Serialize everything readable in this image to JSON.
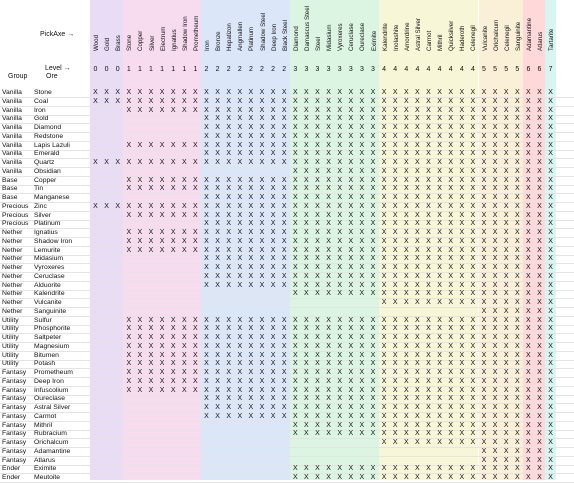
{
  "header": {
    "pickaxe_label": "PickAxe →",
    "level_label": "Level →",
    "group_label": "Group",
    "ore_label": "Ore"
  },
  "mark": "X",
  "band_colors": [
    "#e9dcf5",
    "#f7dcef",
    "#dbe6f9",
    "#dcf5e2",
    "#f7f7d8",
    "#f9f0d7",
    "#ffd9d9",
    "#d9f5f2"
  ],
  "columns": [
    {
      "name": "Wood",
      "level": "0",
      "band": 0
    },
    {
      "name": "Gold",
      "level": "0",
      "band": 0
    },
    {
      "name": "Brass",
      "level": "0",
      "band": 0
    },
    {
      "name": "Stone",
      "level": "1",
      "band": 1
    },
    {
      "name": "Copper",
      "level": "1",
      "band": 1
    },
    {
      "name": "Silver",
      "level": "1",
      "band": 1
    },
    {
      "name": "Electrum",
      "level": "1",
      "band": 1
    },
    {
      "name": "Ignatius",
      "level": "1",
      "band": 1
    },
    {
      "name": "Shadow Iron",
      "level": "1",
      "band": 1
    },
    {
      "name": "Prometheum",
      "level": "1",
      "band": 1
    },
    {
      "name": "Iron",
      "level": "2",
      "band": 2
    },
    {
      "name": "Bronze",
      "level": "2",
      "band": 2
    },
    {
      "name": "Hepatizon",
      "level": "2",
      "band": 2
    },
    {
      "name": "Angmallen",
      "level": "2",
      "band": 2
    },
    {
      "name": "Platinum",
      "level": "2",
      "band": 2
    },
    {
      "name": "Shadow Steel",
      "level": "2",
      "band": 2
    },
    {
      "name": "Deep Iron",
      "level": "2",
      "band": 2
    },
    {
      "name": "Black Steel",
      "level": "2",
      "band": 2
    },
    {
      "name": "Diamond",
      "level": "3",
      "band": 3
    },
    {
      "name": "Damascus Steel",
      "level": "3",
      "band": 3
    },
    {
      "name": "Steel",
      "level": "3",
      "band": 3
    },
    {
      "name": "Midasium",
      "level": "3",
      "band": 3
    },
    {
      "name": "Vyroxeres",
      "level": "3",
      "band": 3
    },
    {
      "name": "Ceruclase",
      "level": "3",
      "band": 3
    },
    {
      "name": "Oureclase",
      "level": "3",
      "band": 3
    },
    {
      "name": "Eximite",
      "level": "3",
      "band": 3
    },
    {
      "name": "Kalendrite",
      "level": "4",
      "band": 4
    },
    {
      "name": "Inolashite",
      "level": "4",
      "band": 4
    },
    {
      "name": "Amordrine",
      "level": "4",
      "band": 4
    },
    {
      "name": "Astral Silver",
      "level": "4",
      "band": 4
    },
    {
      "name": "Carmot",
      "level": "4",
      "band": 4
    },
    {
      "name": "Mithril",
      "level": "4",
      "band": 4
    },
    {
      "name": "Quicksilver",
      "level": "4",
      "band": 4
    },
    {
      "name": "Haderoth",
      "level": "4",
      "band": 4
    },
    {
      "name": "Celenegil",
      "level": "4",
      "band": 4
    },
    {
      "name": "Vulcanite",
      "level": "5",
      "band": 5
    },
    {
      "name": "Orichalcum",
      "level": "5",
      "band": 5
    },
    {
      "name": "Celenegil",
      "level": "5",
      "band": 5
    },
    {
      "name": "Sanguinite",
      "level": "5",
      "band": 5
    },
    {
      "name": "Adamantine",
      "level": "6",
      "band": 6
    },
    {
      "name": "Atlarus",
      "level": "6",
      "band": 6
    },
    {
      "name": "Tartarite",
      "level": "7",
      "band": 7
    }
  ],
  "rows": [
    {
      "group": "Vanilla",
      "ore": "Stone",
      "from": 0
    },
    {
      "group": "Vanilla",
      "ore": "Coal",
      "from": 0
    },
    {
      "group": "Vanilla",
      "ore": "Iron",
      "from": 3
    },
    {
      "group": "Vanilla",
      "ore": "Gold",
      "from": 10
    },
    {
      "group": "Vanilla",
      "ore": "Diamond",
      "from": 10
    },
    {
      "group": "Vanilla",
      "ore": "Redstone",
      "from": 10
    },
    {
      "group": "Vanilla",
      "ore": "Lapis Lazuli",
      "from": 3
    },
    {
      "group": "Vanilla",
      "ore": "Emerald",
      "from": 10
    },
    {
      "group": "Vanilla",
      "ore": "Quartz",
      "from": 0
    },
    {
      "group": "Vanilla",
      "ore": "Obsidian",
      "from": 18
    },
    {
      "group": "Base",
      "ore": "Copper",
      "from": 3
    },
    {
      "group": "Base",
      "ore": "Tin",
      "from": 3
    },
    {
      "group": "Base",
      "ore": "Manganese",
      "from": 10
    },
    {
      "group": "Precious",
      "ore": "Zinc",
      "from": 0
    },
    {
      "group": "Precious",
      "ore": "Silver",
      "from": 3
    },
    {
      "group": "Precious",
      "ore": "Platinum",
      "from": 10
    },
    {
      "group": "Nether",
      "ore": "Ignatius",
      "from": 3
    },
    {
      "group": "Nether",
      "ore": "Shadow Iron",
      "from": 3
    },
    {
      "group": "Nether",
      "ore": "Lemurite",
      "from": 3
    },
    {
      "group": "Nether",
      "ore": "Midasium",
      "from": 10
    },
    {
      "group": "Nether",
      "ore": "Vyroxeres",
      "from": 10
    },
    {
      "group": "Nether",
      "ore": "Ceruclase",
      "from": 10
    },
    {
      "group": "Nether",
      "ore": "Alduorite",
      "from": 10
    },
    {
      "group": "Nether",
      "ore": "Kalendrite",
      "from": 18
    },
    {
      "group": "Nether",
      "ore": "Vulcanite",
      "from": 26
    },
    {
      "group": "Nether",
      "ore": "Sanguinite",
      "from": 35
    },
    {
      "group": "Utility",
      "ore": "Sulfur",
      "from": 3
    },
    {
      "group": "Utility",
      "ore": "Phosphorite",
      "from": 3
    },
    {
      "group": "Utility",
      "ore": "Saltpeter",
      "from": 3
    },
    {
      "group": "Utility",
      "ore": "Magnesium",
      "from": 3
    },
    {
      "group": "Utility",
      "ore": "Bitumen",
      "from": 3
    },
    {
      "group": "Utility",
      "ore": "Potash",
      "from": 3
    },
    {
      "group": "Fantasy",
      "ore": "Prometheum",
      "from": 3
    },
    {
      "group": "Fantasy",
      "ore": "Deep Iron",
      "from": 3
    },
    {
      "group": "Fantasy",
      "ore": "Infuscolium",
      "from": 3
    },
    {
      "group": "Fantasy",
      "ore": "Oureclase",
      "from": 10
    },
    {
      "group": "Fantasy",
      "ore": "Astral Silver",
      "from": 10
    },
    {
      "group": "Fantasy",
      "ore": "Carmot",
      "from": 10
    },
    {
      "group": "Fantasy",
      "ore": "Mithril",
      "from": 18
    },
    {
      "group": "Fantasy",
      "ore": "Rubracium",
      "from": 18
    },
    {
      "group": "Fantasy",
      "ore": "Orichalcum",
      "from": 26
    },
    {
      "group": "Fantasy",
      "ore": "Adamantine",
      "from": 35
    },
    {
      "group": "Fantasy",
      "ore": "Atlarus",
      "from": 35
    },
    {
      "group": "Ender",
      "ore": "Eximite",
      "from": 18
    },
    {
      "group": "Ender",
      "ore": "Meutoite",
      "from": 18
    }
  ]
}
